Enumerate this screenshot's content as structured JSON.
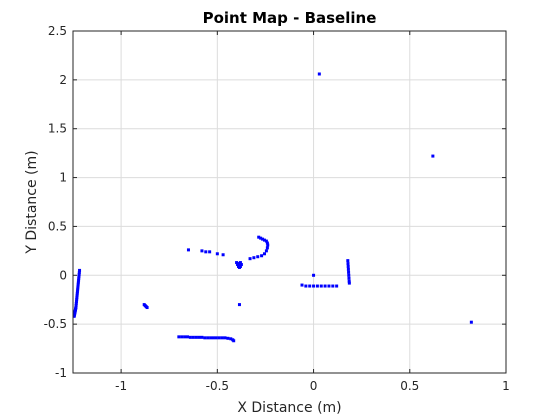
{
  "chart_data": {
    "type": "scatter",
    "title": "Point Map - Baseline",
    "xlabel": "X Distance (m)",
    "ylabel": "Y Distance (m)",
    "xlim": [
      -1.25,
      1
    ],
    "ylim": [
      -1,
      2.5
    ],
    "xticks": [
      -1,
      -0.5,
      0,
      0.5,
      1
    ],
    "yticks": [
      -1,
      -0.5,
      0,
      0.5,
      1,
      1.5,
      2,
      2.5
    ],
    "xtick_labels": [
      "-1",
      "-0.5",
      "0",
      "0.5",
      "1"
    ],
    "ytick_labels": [
      "-1",
      "-0.5",
      "0",
      "0.5",
      "1",
      "1.5",
      "2",
      "2.5"
    ],
    "grid": true,
    "marker_color": "#0000ff",
    "series": [
      {
        "x": [
          -1.216,
          -1.217,
          -1.218,
          -1.219,
          -1.22,
          -1.221,
          -1.222,
          -1.223,
          -1.224,
          -1.225,
          -1.226,
          -1.227,
          -1.228,
          -1.229,
          -1.23,
          -1.231,
          -1.232,
          -1.233,
          -1.234,
          -1.235,
          -1.236,
          -1.237,
          -1.238,
          -1.239,
          -1.24,
          -1.241,
          -1.242,
          -1.243,
          -1.244,
          -0.88,
          -0.875,
          -0.87,
          -0.865,
          -0.7,
          -0.685,
          -0.67,
          -0.655,
          -0.64,
          -0.625,
          -0.61,
          -0.595,
          -0.58,
          -0.565,
          -0.55,
          -0.535,
          -0.52,
          -0.505,
          -0.49,
          -0.475,
          -0.46,
          -0.445,
          -0.43,
          -0.42,
          -0.415,
          -0.65,
          -0.58,
          -0.56,
          -0.54,
          -0.5,
          -0.47,
          -0.4,
          -0.395,
          -0.39,
          -0.385,
          -0.38,
          -0.375,
          -0.38,
          -0.39,
          -0.33,
          -0.31,
          -0.29,
          -0.27,
          -0.255,
          -0.245,
          -0.24,
          -0.238,
          -0.24,
          -0.245,
          -0.255,
          -0.265,
          -0.275,
          -0.285,
          -0.385,
          0.0,
          -0.06,
          -0.04,
          -0.02,
          0.0,
          0.02,
          0.04,
          0.06,
          0.08,
          0.1,
          0.12,
          0.178,
          0.179,
          0.18,
          0.181,
          0.182,
          0.183,
          0.184,
          0.185,
          0.186,
          0.03,
          0.62,
          0.82
        ],
        "y": [
          0.05,
          0.03,
          0.01,
          -0.01,
          -0.03,
          -0.05,
          -0.07,
          -0.09,
          -0.11,
          -0.13,
          -0.15,
          -0.17,
          -0.19,
          -0.21,
          -0.23,
          -0.25,
          -0.27,
          -0.29,
          -0.31,
          -0.33,
          -0.34,
          -0.35,
          -0.36,
          -0.37,
          -0.38,
          -0.39,
          -0.4,
          -0.41,
          -0.42,
          -0.3,
          -0.31,
          -0.32,
          -0.33,
          -0.63,
          -0.63,
          -0.63,
          -0.63,
          -0.635,
          -0.635,
          -0.635,
          -0.635,
          -0.635,
          -0.64,
          -0.64,
          -0.64,
          -0.64,
          -0.64,
          -0.64,
          -0.64,
          -0.64,
          -0.645,
          -0.65,
          -0.66,
          -0.67,
          0.26,
          0.25,
          0.24,
          0.24,
          0.22,
          0.21,
          0.13,
          0.11,
          0.09,
          0.08,
          0.09,
          0.11,
          0.13,
          0.12,
          0.17,
          0.18,
          0.19,
          0.2,
          0.22,
          0.25,
          0.28,
          0.31,
          0.33,
          0.35,
          0.36,
          0.37,
          0.38,
          0.39,
          -0.3,
          0.0,
          -0.1,
          -0.11,
          -0.11,
          -0.11,
          -0.11,
          -0.11,
          -0.11,
          -0.11,
          -0.11,
          -0.11,
          0.15,
          0.12,
          0.09,
          0.06,
          0.03,
          0.0,
          -0.03,
          -0.06,
          -0.08,
          2.06,
          1.22,
          -0.48
        ]
      }
    ]
  }
}
